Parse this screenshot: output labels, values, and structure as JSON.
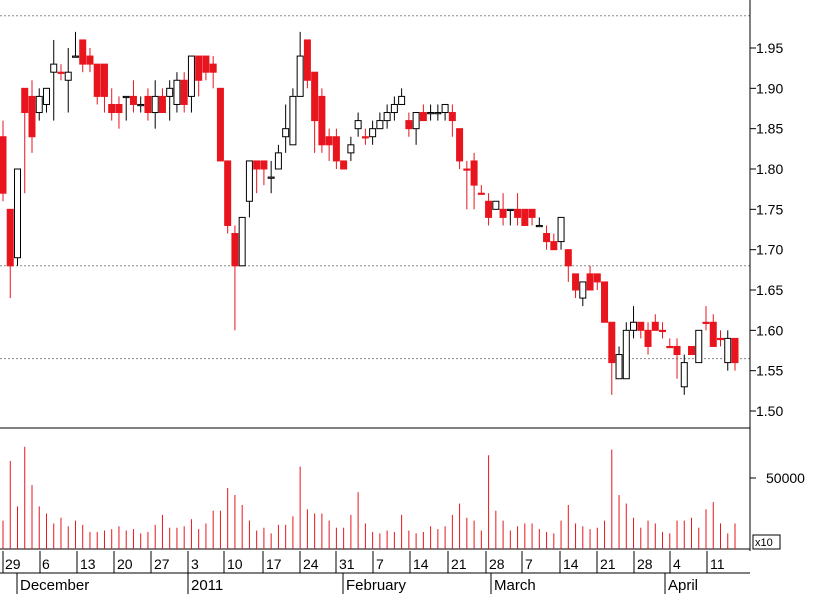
{
  "chart_data": {
    "type": "candlestick",
    "price_axis": {
      "ticks": [
        "1.95",
        "1.90",
        "1.85",
        "1.80",
        "1.75",
        "1.70",
        "1.65",
        "1.60",
        "1.55",
        "1.50"
      ],
      "range": [
        1.475,
        2.0
      ]
    },
    "volume_axis": {
      "ticks": [
        "50000"
      ],
      "multiplier_label": "x10",
      "range": [
        0,
        90000
      ]
    },
    "reference_lines": [
      1.99,
      1.68,
      1.565
    ],
    "x_axis": {
      "day_labels": [
        "29",
        "6",
        "13",
        "20",
        "27",
        "3",
        "10",
        "17",
        "24",
        "31",
        "7",
        "14",
        "21",
        "28",
        "7",
        "14",
        "21",
        "28",
        "4",
        "11"
      ],
      "month_labels": [
        "December",
        "2011",
        "February",
        "March",
        "April"
      ]
    },
    "candles": [
      {
        "o": 1.84,
        "h": 1.86,
        "l": 1.76,
        "c": 1.77,
        "up": false,
        "v": 20000
      },
      {
        "o": 1.75,
        "h": 1.75,
        "l": 1.64,
        "c": 1.68,
        "up": false,
        "v": 62000
      },
      {
        "o": 1.69,
        "h": 1.8,
        "l": 1.68,
        "c": 1.8,
        "up": true,
        "v": 30000
      },
      {
        "o": 1.9,
        "h": 1.9,
        "l": 1.77,
        "c": 1.87,
        "up": false,
        "v": 72000
      },
      {
        "o": 1.89,
        "h": 1.91,
        "l": 1.82,
        "c": 1.84,
        "up": false,
        "v": 45000
      },
      {
        "o": 1.87,
        "h": 1.9,
        "l": 1.86,
        "c": 1.89,
        "up": true,
        "v": 30000
      },
      {
        "o": 1.88,
        "h": 1.9,
        "l": 1.87,
        "c": 1.9,
        "up": true,
        "v": 25000
      },
      {
        "o": 1.92,
        "h": 1.96,
        "l": 1.86,
        "c": 1.93,
        "up": true,
        "v": 18000
      },
      {
        "o": 1.92,
        "h": 1.93,
        "l": 1.91,
        "c": 1.92,
        "up": false,
        "v": 22000
      },
      {
        "o": 1.92,
        "h": 1.95,
        "l": 1.87,
        "c": 1.91,
        "up": true,
        "v": 16000
      },
      {
        "o": 1.94,
        "h": 1.97,
        "l": 1.94,
        "c": 1.94,
        "up": true,
        "v": 20000
      },
      {
        "o": 1.96,
        "h": 1.96,
        "l": 1.92,
        "c": 1.93,
        "up": false,
        "v": 17000
      },
      {
        "o": 1.94,
        "h": 1.95,
        "l": 1.92,
        "c": 1.93,
        "up": false,
        "v": 12000
      },
      {
        "o": 1.93,
        "h": 1.93,
        "l": 1.88,
        "c": 1.89,
        "up": false,
        "v": 12000
      },
      {
        "o": 1.93,
        "h": 1.93,
        "l": 1.87,
        "c": 1.89,
        "up": false,
        "v": 13000
      },
      {
        "o": 1.88,
        "h": 1.9,
        "l": 1.86,
        "c": 1.87,
        "up": false,
        "v": 14000
      },
      {
        "o": 1.88,
        "h": 1.89,
        "l": 1.85,
        "c": 1.87,
        "up": false,
        "v": 16000
      },
      {
        "o": 1.89,
        "h": 1.89,
        "l": 1.86,
        "c": 1.89,
        "up": true,
        "v": 13000
      },
      {
        "o": 1.89,
        "h": 1.91,
        "l": 1.87,
        "c": 1.88,
        "up": false,
        "v": 14000
      },
      {
        "o": 1.88,
        "h": 1.89,
        "l": 1.87,
        "c": 1.88,
        "up": true,
        "v": 11000
      },
      {
        "o": 1.89,
        "h": 1.9,
        "l": 1.86,
        "c": 1.87,
        "up": false,
        "v": 12000
      },
      {
        "o": 1.87,
        "h": 1.91,
        "l": 1.85,
        "c": 1.89,
        "up": true,
        "v": 17000
      },
      {
        "o": 1.89,
        "h": 1.9,
        "l": 1.87,
        "c": 1.87,
        "up": false,
        "v": 24000
      },
      {
        "o": 1.9,
        "h": 1.91,
        "l": 1.86,
        "c": 1.89,
        "up": true,
        "v": 15000
      },
      {
        "o": 1.88,
        "h": 1.92,
        "l": 1.87,
        "c": 1.91,
        "up": true,
        "v": 15000
      },
      {
        "o": 1.91,
        "h": 1.92,
        "l": 1.87,
        "c": 1.88,
        "up": false,
        "v": 16000
      },
      {
        "o": 1.89,
        "h": 1.94,
        "l": 1.87,
        "c": 1.94,
        "up": true,
        "v": 21000
      },
      {
        "o": 1.94,
        "h": 1.94,
        "l": 1.89,
        "c": 1.91,
        "up": false,
        "v": 14000
      },
      {
        "o": 1.94,
        "h": 1.94,
        "l": 1.91,
        "c": 1.92,
        "up": false,
        "v": 18000
      },
      {
        "o": 1.93,
        "h": 1.94,
        "l": 1.9,
        "c": 1.92,
        "up": false,
        "v": 27000
      },
      {
        "o": 1.9,
        "h": 1.9,
        "l": 1.81,
        "c": 1.81,
        "up": false,
        "v": 27000
      },
      {
        "o": 1.81,
        "h": 1.81,
        "l": 1.72,
        "c": 1.73,
        "up": false,
        "v": 43000
      },
      {
        "o": 1.72,
        "h": 1.73,
        "l": 1.6,
        "c": 1.68,
        "up": false,
        "v": 38000
      },
      {
        "o": 1.68,
        "h": 1.74,
        "l": 1.68,
        "c": 1.74,
        "up": true,
        "v": 31000
      },
      {
        "o": 1.76,
        "h": 1.81,
        "l": 1.74,
        "c": 1.81,
        "up": true,
        "v": 20000
      },
      {
        "o": 1.81,
        "h": 1.81,
        "l": 1.77,
        "c": 1.8,
        "up": false,
        "v": 13000
      },
      {
        "o": 1.81,
        "h": 1.81,
        "l": 1.78,
        "c": 1.8,
        "up": false,
        "v": 15000
      },
      {
        "o": 1.79,
        "h": 1.81,
        "l": 1.77,
        "c": 1.79,
        "up": true,
        "v": 11000
      },
      {
        "o": 1.8,
        "h": 1.83,
        "l": 1.8,
        "c": 1.82,
        "up": true,
        "v": 17000
      },
      {
        "o": 1.84,
        "h": 1.88,
        "l": 1.82,
        "c": 1.85,
        "up": true,
        "v": 17000
      },
      {
        "o": 1.83,
        "h": 1.9,
        "l": 1.83,
        "c": 1.89,
        "up": true,
        "v": 23000
      },
      {
        "o": 1.89,
        "h": 1.97,
        "l": 1.89,
        "c": 1.94,
        "up": true,
        "v": 58000
      },
      {
        "o": 1.96,
        "h": 1.96,
        "l": 1.9,
        "c": 1.91,
        "up": false,
        "v": 28000
      },
      {
        "o": 1.92,
        "h": 1.92,
        "l": 1.82,
        "c": 1.86,
        "up": false,
        "v": 25000
      },
      {
        "o": 1.89,
        "h": 1.9,
        "l": 1.82,
        "c": 1.83,
        "up": false,
        "v": 25000
      },
      {
        "o": 1.84,
        "h": 1.85,
        "l": 1.81,
        "c": 1.83,
        "up": false,
        "v": 20000
      },
      {
        "o": 1.84,
        "h": 1.85,
        "l": 1.8,
        "c": 1.81,
        "up": false,
        "v": 15000
      },
      {
        "o": 1.81,
        "h": 1.81,
        "l": 1.8,
        "c": 1.8,
        "up": false,
        "v": 15000
      },
      {
        "o": 1.82,
        "h": 1.84,
        "l": 1.81,
        "c": 1.83,
        "up": true,
        "v": 24000
      },
      {
        "o": 1.86,
        "h": 1.87,
        "l": 1.84,
        "c": 1.85,
        "up": true,
        "v": 40000
      },
      {
        "o": 1.84,
        "h": 1.85,
        "l": 1.83,
        "c": 1.84,
        "up": false,
        "v": 18000
      },
      {
        "o": 1.84,
        "h": 1.86,
        "l": 1.83,
        "c": 1.85,
        "up": true,
        "v": 12000
      },
      {
        "o": 1.85,
        "h": 1.87,
        "l": 1.85,
        "c": 1.86,
        "up": true,
        "v": 11000
      },
      {
        "o": 1.86,
        "h": 1.88,
        "l": 1.85,
        "c": 1.87,
        "up": true,
        "v": 13000
      },
      {
        "o": 1.87,
        "h": 1.89,
        "l": 1.86,
        "c": 1.88,
        "up": true,
        "v": 12000
      },
      {
        "o": 1.89,
        "h": 1.9,
        "l": 1.88,
        "c": 1.88,
        "up": true,
        "v": 24000
      },
      {
        "o": 1.86,
        "h": 1.87,
        "l": 1.84,
        "c": 1.85,
        "up": false,
        "v": 13000
      },
      {
        "o": 1.85,
        "h": 1.87,
        "l": 1.83,
        "c": 1.87,
        "up": true,
        "v": 11000
      },
      {
        "o": 1.87,
        "h": 1.88,
        "l": 1.86,
        "c": 1.86,
        "up": false,
        "v": 12000
      },
      {
        "o": 1.87,
        "h": 1.88,
        "l": 1.86,
        "c": 1.87,
        "up": true,
        "v": 16000
      },
      {
        "o": 1.87,
        "h": 1.88,
        "l": 1.86,
        "c": 1.87,
        "up": true,
        "v": 14000
      },
      {
        "o": 1.88,
        "h": 1.88,
        "l": 1.86,
        "c": 1.87,
        "up": true,
        "v": 16000
      },
      {
        "o": 1.87,
        "h": 1.88,
        "l": 1.84,
        "c": 1.86,
        "up": false,
        "v": 24000
      },
      {
        "o": 1.85,
        "h": 1.85,
        "l": 1.8,
        "c": 1.81,
        "up": false,
        "v": 32000
      },
      {
        "o": 1.8,
        "h": 1.81,
        "l": 1.75,
        "c": 1.8,
        "up": false,
        "v": 22000
      },
      {
        "o": 1.81,
        "h": 1.82,
        "l": 1.75,
        "c": 1.78,
        "up": false,
        "v": 20000
      },
      {
        "o": 1.77,
        "h": 1.78,
        "l": 1.77,
        "c": 1.77,
        "up": false,
        "v": 13000
      },
      {
        "o": 1.76,
        "h": 1.77,
        "l": 1.73,
        "c": 1.74,
        "up": false,
        "v": 66000
      },
      {
        "o": 1.76,
        "h": 1.76,
        "l": 1.75,
        "c": 1.75,
        "up": true,
        "v": 27000
      },
      {
        "o": 1.75,
        "h": 1.77,
        "l": 1.73,
        "c": 1.74,
        "up": false,
        "v": 20000
      },
      {
        "o": 1.75,
        "h": 1.75,
        "l": 1.73,
        "c": 1.75,
        "up": true,
        "v": 13000
      },
      {
        "o": 1.75,
        "h": 1.77,
        "l": 1.73,
        "c": 1.74,
        "up": false,
        "v": 16000
      },
      {
        "o": 1.75,
        "h": 1.75,
        "l": 1.73,
        "c": 1.73,
        "up": false,
        "v": 18000
      },
      {
        "o": 1.75,
        "h": 1.75,
        "l": 1.73,
        "c": 1.74,
        "up": false,
        "v": 18000
      },
      {
        "o": 1.73,
        "h": 1.74,
        "l": 1.73,
        "c": 1.73,
        "up": true,
        "v": 14000
      },
      {
        "o": 1.72,
        "h": 1.73,
        "l": 1.7,
        "c": 1.71,
        "up": false,
        "v": 12000
      },
      {
        "o": 1.71,
        "h": 1.72,
        "l": 1.7,
        "c": 1.7,
        "up": false,
        "v": 11000
      },
      {
        "o": 1.71,
        "h": 1.74,
        "l": 1.7,
        "c": 1.74,
        "up": true,
        "v": 20000
      },
      {
        "o": 1.7,
        "h": 1.7,
        "l": 1.66,
        "c": 1.68,
        "up": false,
        "v": 31000
      },
      {
        "o": 1.67,
        "h": 1.67,
        "l": 1.64,
        "c": 1.65,
        "up": false,
        "v": 18000
      },
      {
        "o": 1.64,
        "h": 1.66,
        "l": 1.63,
        "c": 1.66,
        "up": true,
        "v": 16000
      },
      {
        "o": 1.67,
        "h": 1.68,
        "l": 1.65,
        "c": 1.65,
        "up": false,
        "v": 14000
      },
      {
        "o": 1.67,
        "h": 1.67,
        "l": 1.65,
        "c": 1.66,
        "up": false,
        "v": 15000
      },
      {
        "o": 1.66,
        "h": 1.66,
        "l": 1.61,
        "c": 1.61,
        "up": false,
        "v": 20000
      },
      {
        "o": 1.61,
        "h": 1.61,
        "l": 1.52,
        "c": 1.56,
        "up": false,
        "v": 70000
      },
      {
        "o": 1.54,
        "h": 1.58,
        "l": 1.54,
        "c": 1.57,
        "up": true,
        "v": 38000
      },
      {
        "o": 1.54,
        "h": 1.61,
        "l": 1.54,
        "c": 1.6,
        "up": true,
        "v": 32000
      },
      {
        "o": 1.6,
        "h": 1.63,
        "l": 1.59,
        "c": 1.61,
        "up": true,
        "v": 22000
      },
      {
        "o": 1.61,
        "h": 1.61,
        "l": 1.59,
        "c": 1.6,
        "up": false,
        "v": 15000
      },
      {
        "o": 1.6,
        "h": 1.61,
        "l": 1.57,
        "c": 1.58,
        "up": false,
        "v": 20000
      },
      {
        "o": 1.61,
        "h": 1.62,
        "l": 1.6,
        "c": 1.6,
        "up": false,
        "v": 18000
      },
      {
        "o": 1.6,
        "h": 1.61,
        "l": 1.59,
        "c": 1.6,
        "up": false,
        "v": 12000
      },
      {
        "o": 1.58,
        "h": 1.59,
        "l": 1.58,
        "c": 1.58,
        "up": false,
        "v": 11000
      },
      {
        "o": 1.58,
        "h": 1.59,
        "l": 1.54,
        "c": 1.57,
        "up": false,
        "v": 20000
      },
      {
        "o": 1.53,
        "h": 1.57,
        "l": 1.52,
        "c": 1.56,
        "up": true,
        "v": 20000
      },
      {
        "o": 1.58,
        "h": 1.58,
        "l": 1.57,
        "c": 1.57,
        "up": false,
        "v": 22000
      },
      {
        "o": 1.56,
        "h": 1.6,
        "l": 1.56,
        "c": 1.6,
        "up": true,
        "v": 15000
      },
      {
        "o": 1.61,
        "h": 1.63,
        "l": 1.6,
        "c": 1.61,
        "up": false,
        "v": 28000
      },
      {
        "o": 1.61,
        "h": 1.62,
        "l": 1.58,
        "c": 1.58,
        "up": false,
        "v": 33000
      },
      {
        "o": 1.59,
        "h": 1.6,
        "l": 1.58,
        "c": 1.59,
        "up": false,
        "v": 18000
      },
      {
        "o": 1.56,
        "h": 1.6,
        "l": 1.55,
        "c": 1.59,
        "up": true,
        "v": 11000
      },
      {
        "o": 1.59,
        "h": 1.59,
        "l": 1.55,
        "c": 1.56,
        "up": false,
        "v": 18000
      }
    ]
  }
}
